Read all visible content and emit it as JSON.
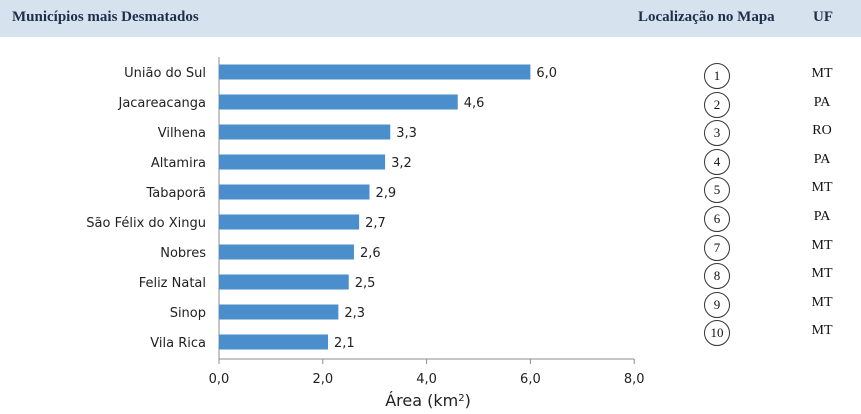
{
  "header": {
    "title": "Municípios mais Desmatados",
    "location_label": "Localização no Mapa",
    "uf_label": "UF"
  },
  "chart_data": {
    "type": "bar",
    "orientation": "horizontal",
    "categories": [
      "União do Sul",
      "Jacareacanga",
      "Vilhena",
      "Altamira",
      "Tabaporã",
      "São Félix do Xingu",
      "Nobres",
      "Feliz Natal",
      "Sinop",
      "Vila Rica"
    ],
    "values": [
      6.0,
      4.6,
      3.3,
      3.2,
      2.9,
      2.7,
      2.6,
      2.5,
      2.3,
      2.1
    ],
    "value_labels": [
      "6,0",
      "4,6",
      "3,3",
      "3,2",
      "2,9",
      "2,7",
      "2,6",
      "2,5",
      "2,3",
      "2,1"
    ],
    "xlabel": "Área (km²)",
    "xlabel_base": "Área (km",
    "xlabel_sup": "2",
    "xlabel_close": ")",
    "xlim": [
      0,
      8
    ],
    "xticks": [
      0,
      2,
      4,
      6,
      8
    ],
    "xtick_labels": [
      "0,0",
      "2,0",
      "4,0",
      "6,0",
      "8,0"
    ],
    "grid": false,
    "bar_color": "#4a8ecb"
  },
  "locations": [
    {
      "number": "1",
      "uf": "MT"
    },
    {
      "number": "2",
      "uf": "PA"
    },
    {
      "number": "3",
      "uf": "RO"
    },
    {
      "number": "4",
      "uf": "PA"
    },
    {
      "number": "5",
      "uf": "MT"
    },
    {
      "number": "6",
      "uf": "PA"
    },
    {
      "number": "7",
      "uf": "MT"
    },
    {
      "number": "8",
      "uf": "MT"
    },
    {
      "number": "9",
      "uf": "MT"
    },
    {
      "number": "10",
      "uf": "MT"
    }
  ]
}
